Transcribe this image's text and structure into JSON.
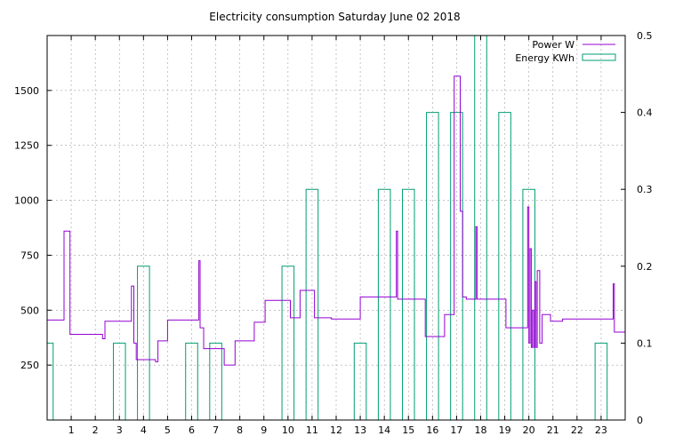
{
  "chart_data": {
    "type": "line",
    "title": "Electricity consumption Saturday June 02 2018",
    "xlabel": "",
    "ylabel": "",
    "xlim": [
      0,
      24
    ],
    "ylim": [
      0,
      1750
    ],
    "y2lim": [
      0,
      0.5
    ],
    "grid": true,
    "legend_position": "top-right",
    "x_ticks": [
      1,
      2,
      3,
      4,
      5,
      6,
      7,
      8,
      9,
      10,
      11,
      12,
      13,
      14,
      15,
      16,
      17,
      18,
      19,
      20,
      21,
      22,
      23
    ],
    "y_ticks": [
      250,
      500,
      750,
      1000,
      1250,
      1500
    ],
    "y2_ticks": [
      0,
      0.1,
      0.2,
      0.3,
      0.4,
      0.5
    ],
    "series": [
      {
        "name": "Power W",
        "axis": "y",
        "style": "steps",
        "color": "#9400d3",
        "x": [
          0.0,
          0.7,
          0.7,
          0.95,
          0.95,
          2.3,
          2.3,
          2.4,
          2.4,
          3.5,
          3.5,
          3.6,
          3.6,
          3.7,
          3.7,
          4.5,
          4.5,
          4.6,
          4.6,
          5.0,
          5.0,
          6.3,
          6.3,
          6.35,
          6.35,
          6.5,
          6.5,
          7.35,
          7.35,
          7.8,
          7.8,
          8.6,
          8.6,
          9.05,
          9.05,
          10.1,
          10.1,
          10.5,
          10.5,
          11.1,
          11.1,
          11.8,
          11.8,
          13.0,
          13.0,
          14.5,
          14.5,
          14.55,
          14.55,
          15.7,
          15.7,
          16.5,
          16.5,
          16.9,
          16.9,
          17.15,
          17.15,
          17.25,
          17.25,
          17.4,
          17.4,
          17.8,
          17.8,
          17.85,
          17.85,
          19.05,
          19.05,
          19.95,
          19.95,
          20.0,
          20.0,
          20.05,
          20.05,
          20.1,
          20.1,
          20.15,
          20.15,
          20.2,
          20.2,
          20.25,
          20.25,
          20.3,
          20.3,
          20.35,
          20.35,
          20.45,
          20.45,
          20.55,
          20.55,
          20.65,
          20.65,
          20.75,
          20.75,
          20.9,
          20.9,
          21.4,
          21.4,
          22.4,
          22.4,
          23.5,
          23.5,
          23.55,
          23.55,
          24.0
        ],
        "y": [
          455,
          455,
          860,
          860,
          390,
          390,
          370,
          370,
          450,
          450,
          610,
          610,
          350,
          350,
          275,
          275,
          265,
          265,
          360,
          360,
          455,
          455,
          725,
          725,
          420,
          420,
          325,
          325,
          250,
          250,
          360,
          360,
          445,
          445,
          545,
          545,
          465,
          465,
          590,
          590,
          465,
          465,
          460,
          460,
          560,
          560,
          860,
          860,
          550,
          550,
          380,
          380,
          480,
          480,
          1565,
          1565,
          950,
          950,
          560,
          560,
          550,
          550,
          880,
          880,
          550,
          550,
          420,
          420,
          970,
          970,
          350,
          350,
          780,
          780,
          330,
          330,
          500,
          500,
          330,
          330,
          630,
          630,
          330,
          330,
          680,
          680,
          350,
          350,
          480,
          480,
          480,
          480,
          480,
          480,
          450,
          450,
          460,
          460,
          460,
          460,
          620,
          620,
          400,
          400
        ]
      },
      {
        "name": "Energy KWh",
        "axis": "y2",
        "style": "boxes",
        "color": "#009e73",
        "x": [
          0,
          1,
          2,
          3,
          4,
          5,
          6,
          7,
          8,
          9,
          10,
          11,
          12,
          13,
          14,
          15,
          16,
          17,
          18,
          19,
          20,
          21,
          22,
          23
        ],
        "values": [
          0.1,
          0,
          0,
          0.1,
          0.2,
          0,
          0.1,
          0.1,
          0,
          0,
          0.2,
          0.3,
          0,
          0.1,
          0.3,
          0.3,
          0.4,
          0.4,
          0.5,
          0.4,
          0.3,
          0,
          0,
          0.1
        ]
      }
    ]
  }
}
